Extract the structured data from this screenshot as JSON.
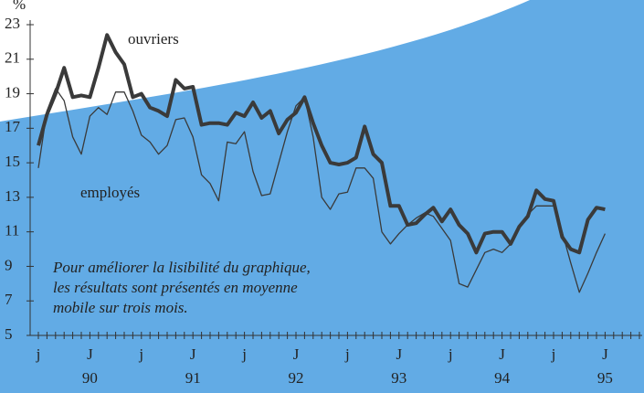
{
  "chart_data": {
    "type": "line",
    "y_unit": "%",
    "categories": [
      "j",
      null,
      null,
      null,
      null,
      null,
      "J",
      null,
      null,
      null,
      null,
      null,
      "j",
      null,
      null,
      null,
      null,
      null,
      "J",
      null,
      null,
      null,
      null,
      null,
      "j",
      null,
      null,
      null,
      null,
      null,
      "J",
      null,
      null,
      null,
      null,
      null,
      "j",
      null,
      null,
      null,
      null,
      null,
      "J",
      null,
      null,
      null,
      null,
      null,
      "j",
      null,
      null,
      null,
      null,
      null,
      "J",
      null,
      null,
      null,
      null,
      null,
      "j",
      null,
      null,
      null,
      null,
      null,
      "J"
    ],
    "years": [
      "90",
      "91",
      "92",
      "93",
      "94",
      "95"
    ],
    "series": [
      {
        "name": "ouvriers",
        "color": "#3a3a3a",
        "width": 4,
        "values": [
          16.0,
          17.8,
          19.0,
          20.5,
          18.8,
          18.9,
          18.8,
          20.5,
          22.4,
          21.4,
          20.7,
          18.8,
          19.0,
          18.2,
          18.0,
          17.7,
          19.8,
          19.3,
          19.4,
          17.2,
          17.3,
          17.3,
          17.2,
          17.9,
          17.7,
          18.5,
          17.6,
          18.0,
          16.7,
          17.5,
          17.9,
          18.8,
          17.3,
          16.0,
          15.0,
          14.9,
          15.0,
          15.3,
          17.1,
          15.5,
          15.0,
          12.5,
          12.5,
          11.4,
          11.5,
          12.0,
          12.4,
          11.6,
          12.3,
          11.4,
          10.9,
          9.8,
          10.9,
          11.0,
          11.0,
          10.3,
          11.3,
          11.9,
          13.4,
          12.9,
          12.8,
          10.7,
          10.0,
          9.8,
          11.7,
          12.4,
          12.3
        ]
      },
      {
        "name": "employés",
        "color": "#3a3a3a",
        "width": 1.3,
        "values": [
          14.7,
          18.0,
          19.3,
          18.6,
          16.5,
          15.5,
          17.7,
          18.2,
          17.8,
          19.1,
          19.1,
          18.0,
          16.6,
          16.2,
          15.5,
          16.0,
          17.5,
          17.6,
          16.5,
          14.3,
          13.8,
          12.8,
          16.2,
          16.1,
          16.8,
          14.5,
          13.1,
          13.2,
          15.0,
          16.8,
          18.3,
          18.8,
          16.5,
          13.0,
          12.3,
          13.2,
          13.3,
          14.7,
          14.7,
          14.1,
          11.0,
          10.3,
          10.9,
          11.4,
          11.8,
          12.1,
          11.9,
          11.2,
          10.5,
          8.0,
          7.8,
          8.8,
          9.8,
          10.0,
          9.8,
          10.3,
          11.3,
          12.0,
          12.5,
          12.5,
          12.5,
          11.0,
          9.2,
          7.5,
          8.6,
          9.8,
          10.9
        ]
      }
    ],
    "ylim": [
      5,
      23
    ],
    "yticks": [
      5,
      7,
      9,
      11,
      13,
      15,
      17,
      19,
      21,
      23
    ],
    "annotation": [
      "Pour améliorer la lisibilité du graphique,",
      "les résultats sont présentés en moyenne",
      "mobile sur trois mois."
    ]
  }
}
